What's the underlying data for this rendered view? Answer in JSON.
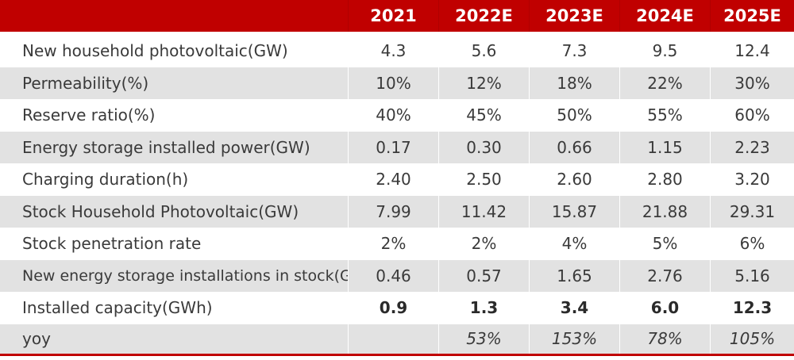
{
  "header": {
    "corner": "",
    "years": [
      "2021",
      "2022E",
      "2023E",
      "2024E",
      "2025E"
    ]
  },
  "rows": [
    {
      "label": "New household photovoltaic(GW)",
      "values": [
        "4.3",
        "5.6",
        "7.3",
        "9.5",
        "12.4"
      ]
    },
    {
      "label": "Permeability(%)",
      "values": [
        "10%",
        "12%",
        "18%",
        "22%",
        "30%"
      ]
    },
    {
      "label": "Reserve ratio(%)",
      "values": [
        "40%",
        "45%",
        "50%",
        "55%",
        "60%"
      ]
    },
    {
      "label": "Energy storage installed power(GW)",
      "values": [
        "0.17",
        "0.30",
        "0.66",
        "1.15",
        "2.23"
      ]
    },
    {
      "label": "Charging duration(h)",
      "values": [
        "2.40",
        "2.50",
        "2.60",
        "2.80",
        "3.20"
      ]
    },
    {
      "label": "Stock Household Photovoltaic(GW)",
      "values": [
        "7.99",
        "11.42",
        "15.87",
        "21.88",
        "29.31"
      ]
    },
    {
      "label": "Stock penetration rate",
      "values": [
        "2%",
        "2%",
        "4%",
        "5%",
        "6%"
      ]
    },
    {
      "label": "New energy storage installations in stock(GW)",
      "values": [
        "0.46",
        "0.57",
        "1.65",
        "2.76",
        "5.16"
      ]
    },
    {
      "label": "Installed capacity(GWh)",
      "values": [
        "0.9",
        "1.3",
        "3.4",
        "6.0",
        "12.3"
      ]
    },
    {
      "label": "yoy",
      "values": [
        "",
        "53%",
        "153%",
        "78%",
        "105%"
      ]
    }
  ],
  "colors": {
    "header_bg": "#c00000",
    "shade_bg": "#e2e2e2",
    "bottom_rule": "#c00000"
  }
}
